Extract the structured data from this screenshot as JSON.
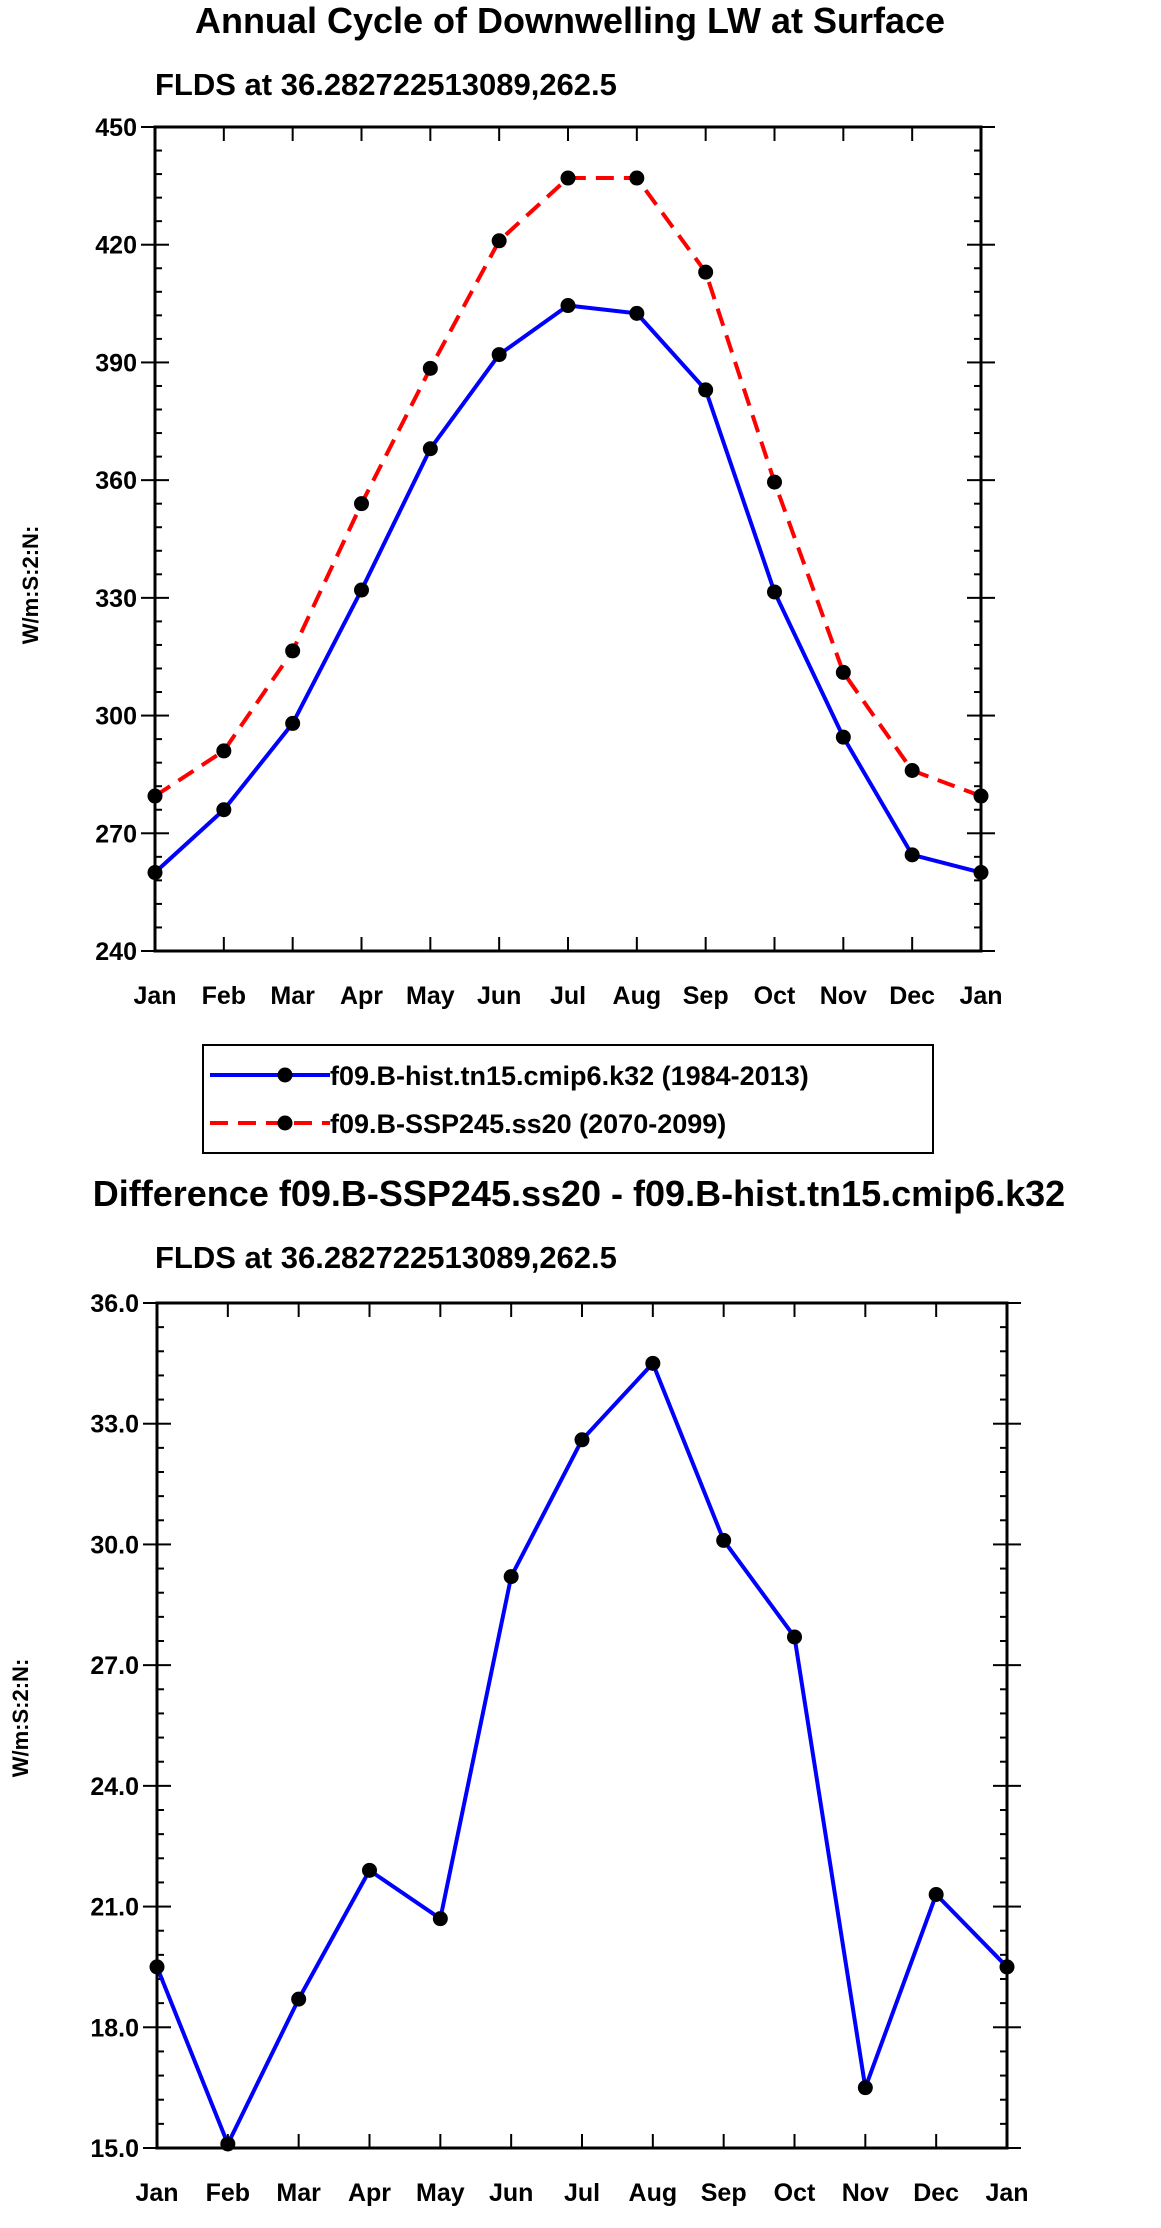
{
  "chart_data": [
    {
      "type": "line",
      "title": "Annual Cycle of Downwelling LW at Surface",
      "subtitle": "FLDS at 36.282722513089,262.5",
      "xlabel": "",
      "ylabel": "W/m:S:2:N:",
      "categories": [
        "Jan",
        "Feb",
        "Mar",
        "Apr",
        "May",
        "Jun",
        "Jul",
        "Aug",
        "Sep",
        "Oct",
        "Nov",
        "Dec",
        "Jan"
      ],
      "ylim": [
        240,
        450
      ],
      "yticks": [
        "240",
        "270",
        "300",
        "330",
        "360",
        "390",
        "420",
        "450"
      ],
      "series": [
        {
          "name": "f09.B-hist.tn15.cmip6.k32 (1984-2013)",
          "color": "#0000ff",
          "dash": "solid",
          "values": [
            260,
            276,
            298,
            332,
            368,
            392,
            404.5,
            402.5,
            383,
            331.5,
            294.5,
            264.5,
            260
          ]
        },
        {
          "name": "f09.B-SSP245.ss20 (2070-2099)",
          "color": "#ff0000",
          "dash": "dashed",
          "values": [
            279.5,
            291,
            316.5,
            354,
            388.5,
            421,
            437,
            437,
            413,
            359.5,
            311,
            286,
            279.5
          ]
        }
      ],
      "legend": "below"
    },
    {
      "type": "line",
      "title": "Difference f09.B-SSP245.ss20 - f09.B-hist.tn15.cmip6.k32",
      "subtitle": "FLDS at 36.282722513089,262.5",
      "xlabel": "",
      "ylabel": "W/m:S:2:N:",
      "categories": [
        "Jan",
        "Feb",
        "Mar",
        "Apr",
        "May",
        "Jun",
        "Jul",
        "Aug",
        "Sep",
        "Oct",
        "Nov",
        "Dec",
        "Jan"
      ],
      "ylim": [
        15.0,
        36.0
      ],
      "yticks": [
        "15.0",
        "18.0",
        "21.0",
        "24.0",
        "27.0",
        "30.0",
        "33.0",
        "36.0"
      ],
      "series": [
        {
          "name": "difference",
          "color": "#0000ff",
          "dash": "solid",
          "values": [
            19.5,
            15.1,
            18.7,
            21.9,
            20.7,
            29.2,
            32.6,
            34.5,
            30.1,
            27.7,
            16.5,
            21.3,
            19.5
          ]
        }
      ]
    }
  ]
}
